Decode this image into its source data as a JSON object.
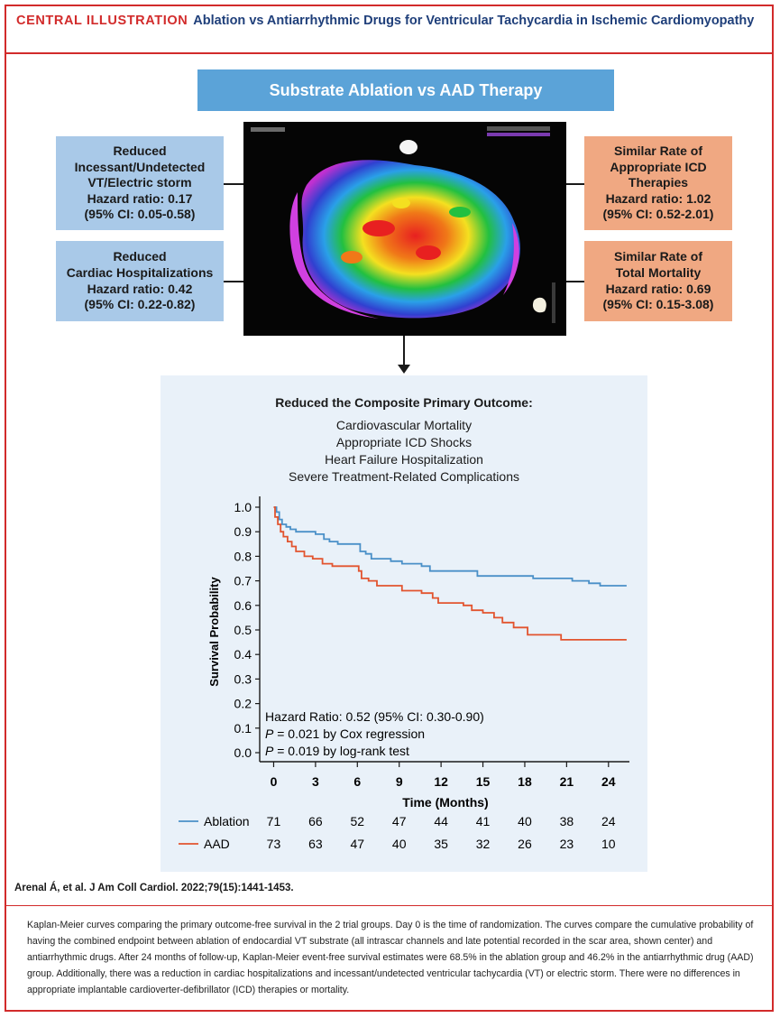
{
  "header": {
    "tag": "CENTRAL ILLUSTRATION",
    "title": "Ablation vs Antiarrhythmic Drugs for Ventricular Tachycardia in Ischemic Cardiomyopathy"
  },
  "banner": "Substrate Ablation vs AAD Therapy",
  "left_boxes": [
    {
      "lines": [
        "Reduced",
        "Incessant/Undetected",
        "VT/Electric storm",
        "Hazard ratio: 0.17",
        "(95% CI: 0.05-0.58)"
      ]
    },
    {
      "lines": [
        "Reduced",
        "Cardiac Hospitalizations",
        "Hazard ratio: 0.42",
        "(95% CI: 0.22-0.82)"
      ]
    }
  ],
  "right_boxes": [
    {
      "lines": [
        "Similar Rate of",
        "Appropriate ICD",
        "Therapies",
        "Hazard ratio: 1.02",
        "(95% CI: 0.52-2.01)"
      ]
    },
    {
      "lines": [
        "Similar Rate of",
        "Total Mortality",
        "Hazard ratio: 0.69",
        "(95% CI: 0.15-3.08)"
      ]
    }
  ],
  "outcome": {
    "title": "Reduced the Composite Primary Outcome:",
    "items": [
      "Cardiovascular Mortality",
      "Appropriate ICD Shocks",
      "Heart Failure Hospitalization",
      "Severe Treatment-Related Complications"
    ]
  },
  "chart_data": {
    "type": "line",
    "title": "",
    "xlabel": "Time (Months)",
    "ylabel": "Survival Probability",
    "xlim": [
      -1,
      25.5
    ],
    "ylim": [
      0,
      1.0
    ],
    "x_ticks": [
      0,
      3,
      6,
      9,
      12,
      15,
      18,
      21,
      24
    ],
    "y_ticks": [
      "0.0",
      "0.1",
      "0.2",
      "0.3",
      "0.4",
      "0.5",
      "0.6",
      "0.7",
      "0.8",
      "0.9",
      "1.0"
    ],
    "series": [
      {
        "name": "Ablation",
        "color": "#4a90c8",
        "step": [
          [
            0,
            1.0
          ],
          [
            0.2,
            0.98
          ],
          [
            0.4,
            0.95
          ],
          [
            0.6,
            0.93
          ],
          [
            0.9,
            0.92
          ],
          [
            1.2,
            0.91
          ],
          [
            1.6,
            0.9
          ],
          [
            3,
            0.89
          ],
          [
            3.6,
            0.87
          ],
          [
            4,
            0.86
          ],
          [
            4.6,
            0.85
          ],
          [
            6.2,
            0.82
          ],
          [
            6.6,
            0.81
          ],
          [
            7,
            0.79
          ],
          [
            8.4,
            0.78
          ],
          [
            9.2,
            0.77
          ],
          [
            10.6,
            0.76
          ],
          [
            11.2,
            0.74
          ],
          [
            14.6,
            0.72
          ],
          [
            18.6,
            0.71
          ],
          [
            21.4,
            0.7
          ],
          [
            22.6,
            0.69
          ],
          [
            23.4,
            0.68
          ],
          [
            25.3,
            0.68
          ]
        ]
      },
      {
        "name": "AAD",
        "color": "#e2542f",
        "step": [
          [
            0,
            1.0
          ],
          [
            0.1,
            0.96
          ],
          [
            0.3,
            0.93
          ],
          [
            0.5,
            0.9
          ],
          [
            0.7,
            0.88
          ],
          [
            1,
            0.86
          ],
          [
            1.3,
            0.84
          ],
          [
            1.6,
            0.82
          ],
          [
            2.2,
            0.8
          ],
          [
            2.8,
            0.79
          ],
          [
            3.5,
            0.77
          ],
          [
            4.2,
            0.76
          ],
          [
            6.1,
            0.74
          ],
          [
            6.3,
            0.71
          ],
          [
            6.8,
            0.7
          ],
          [
            7.4,
            0.68
          ],
          [
            9.2,
            0.66
          ],
          [
            10.6,
            0.65
          ],
          [
            11.4,
            0.63
          ],
          [
            11.8,
            0.61
          ],
          [
            13.6,
            0.6
          ],
          [
            14.2,
            0.58
          ],
          [
            15,
            0.57
          ],
          [
            15.8,
            0.55
          ],
          [
            16.4,
            0.53
          ],
          [
            17.2,
            0.51
          ],
          [
            18.2,
            0.48
          ],
          [
            20.6,
            0.46
          ],
          [
            25.3,
            0.46
          ]
        ]
      }
    ],
    "annotations": [
      "Hazard Ratio: 0.52 (95% CI: 0.30-0.90)",
      "P = 0.021 by Cox regression",
      "P = 0.019 by log-rank test"
    ],
    "risk_table": {
      "Ablation": [
        71,
        66,
        52,
        47,
        44,
        41,
        40,
        38,
        24
      ],
      "AAD": [
        73,
        63,
        47,
        40,
        35,
        32,
        26,
        23,
        10
      ]
    }
  },
  "citation": "Arenal Á, et al. J Am Coll Cardiol. 2022;79(15):1441-1453.",
  "caption": "Kaplan-Meier curves comparing the primary outcome-free survival in the 2 trial groups. Day 0 is the time of randomization. The curves compare the cumulative probability of having the combined endpoint between ablation of endocardial VT substrate (all intrascar channels and late potential recorded in the scar area, shown center) and antiarrhythmic drugs. After 24 months of follow-up, Kaplan-Meier event-free survival estimates were 68.5% in the ablation group and 46.2% in the antiarrhythmic drug (AAD) group. Additionally, there was a reduction in cardiac hospitalizations and incessant/undetected ventricular tachycardia (VT) or electric storm. There were no differences in appropriate implantable cardioverter-defibrillator (ICD) therapies or mortality."
}
